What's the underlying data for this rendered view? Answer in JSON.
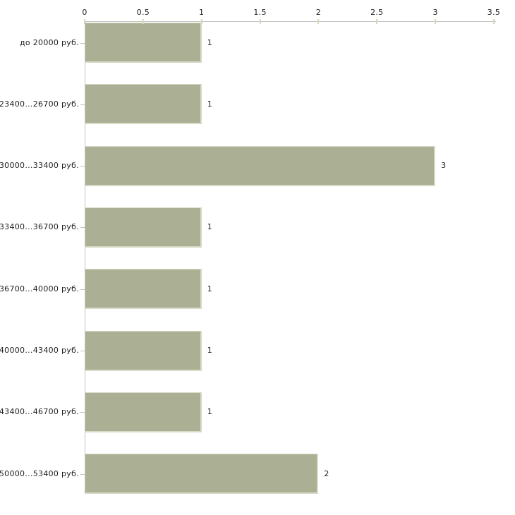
{
  "chart_data": {
    "type": "bar",
    "orientation": "horizontal",
    "title": "",
    "xlabel": "",
    "ylabel": "",
    "categories": [
      "до 20000 руб.",
      "23400...26700 руб.",
      "30000...33400 руб.",
      "33400...36700 руб.",
      "36700...40000 руб.",
      "40000...43400 руб.",
      "43400...46700 руб.",
      "50000...53400 руб."
    ],
    "values": [
      1,
      1,
      3,
      1,
      1,
      1,
      1,
      2
    ],
    "value_labels": [
      "1",
      "1",
      "3",
      "1",
      "1",
      "1",
      "1",
      "2"
    ],
    "x_ticks": [
      0,
      0.5,
      1,
      1.5,
      2,
      2.5,
      3,
      3.5
    ],
    "x_tick_labels": [
      "0",
      "0.5",
      "1",
      "1.5",
      "2",
      "2.5",
      "3",
      "3.5"
    ],
    "xlim": [
      0,
      3.5
    ],
    "grid": false,
    "legend": "none",
    "x_axis_position": "top",
    "colors": {
      "bar_fill": "#abb095",
      "bar_edge": "#d8dbc7",
      "axis_line": "#c4c4c4",
      "x_tick_mark": "#d6d8c0",
      "y_tick_mark": "#c2c2c2",
      "text": "#1f1f1f",
      "background": "#ffffff"
    }
  }
}
